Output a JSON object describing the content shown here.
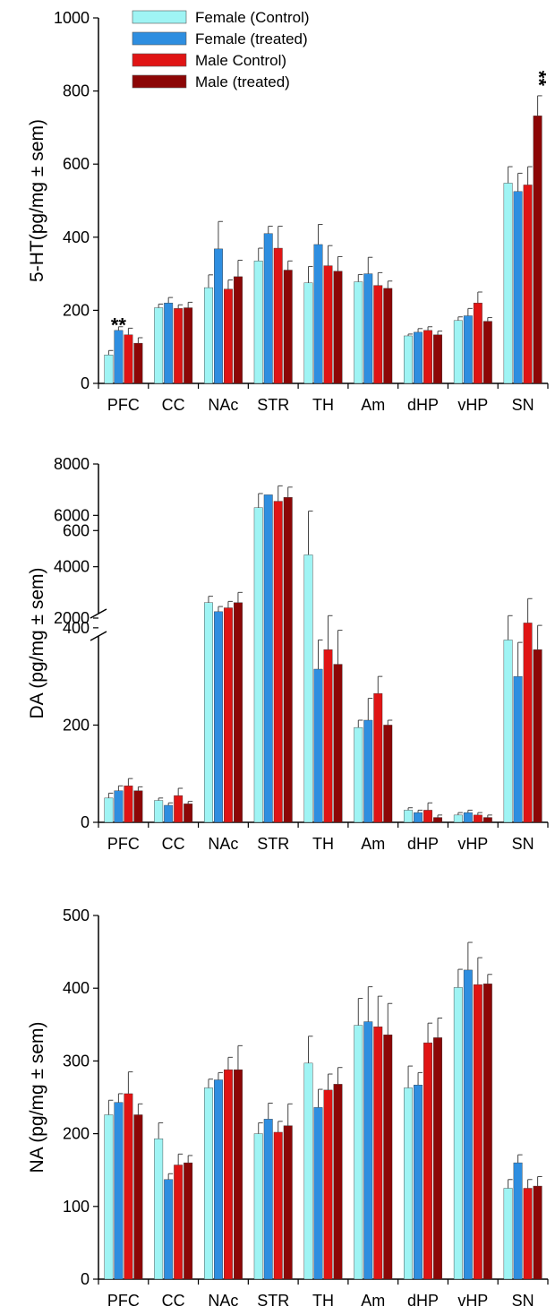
{
  "colors": {
    "female_control": "#9ff4f4",
    "female_treated": "#2e8ee0",
    "male_control": "#e01414",
    "male_treated": "#8c0606"
  },
  "chart_data": [
    {
      "type": "bar",
      "ylabel": "5-HT(pg/mg ± sem)",
      "ylim": [
        0,
        1000
      ],
      "yticks": [
        0,
        200,
        400,
        600,
        800,
        1000
      ],
      "categories": [
        "PFC",
        "CC",
        "NAc",
        "STR",
        "TH",
        "Am",
        "dHP",
        "vHP",
        "SN"
      ],
      "legend_position": "top-left",
      "series": [
        {
          "name": "Female (Control)",
          "color_key": "female_control",
          "values": [
            78,
            207,
            262,
            335,
            275,
            278,
            130,
            172,
            548
          ],
          "errors": [
            12,
            10,
            35,
            35,
            45,
            20,
            5,
            10,
            45
          ]
        },
        {
          "name": "Female (treated)",
          "color_key": "female_treated",
          "values": [
            145,
            220,
            368,
            410,
            380,
            300,
            140,
            185,
            525
          ],
          "errors": [
            10,
            15,
            75,
            20,
            55,
            45,
            10,
            20,
            50
          ]
        },
        {
          "name": "Male Control)",
          "color_key": "male_control",
          "values": [
            133,
            205,
            258,
            370,
            322,
            268,
            145,
            220,
            543
          ],
          "errors": [
            18,
            10,
            25,
            60,
            55,
            35,
            10,
            30,
            50
          ]
        },
        {
          "name": "Male (treated)",
          "color_key": "male_treated",
          "values": [
            110,
            207,
            292,
            310,
            307,
            260,
            133,
            170,
            732
          ],
          "errors": [
            15,
            15,
            45,
            25,
            40,
            20,
            10,
            10,
            55
          ]
        }
      ],
      "annotations": [
        {
          "text": "**",
          "category": "PFC",
          "series": 1,
          "value": 175
        },
        {
          "text": "**",
          "category": "SN",
          "series": 3,
          "value": 835
        }
      ]
    },
    {
      "type": "bar",
      "ylabel": "DA (pg/mg ± sem)",
      "axis_break": true,
      "ylim_lower": [
        0,
        700
      ],
      "yticks_lower": [
        0,
        200,
        400,
        600
      ],
      "ylim_upper": [
        2000,
        8000
      ],
      "yticks_upper": [
        2000,
        4000,
        6000,
        8000
      ],
      "categories": [
        "PFC",
        "CC",
        "NAc",
        "STR",
        "TH",
        "Am",
        "dHP",
        "vHP",
        "SN"
      ],
      "series": [
        {
          "name": "Female (Control)",
          "color_key": "female_control",
          "values": [
            50,
            45,
            2600,
            6300,
            550,
            195,
            25,
            15,
            375
          ],
          "errors": [
            10,
            5,
            250,
            550,
            90,
            15,
            5,
            5,
            50
          ]
        },
        {
          "name": "Female (treated)",
          "color_key": "female_treated",
          "values": [
            65,
            35,
            2250,
            6800,
            315,
            210,
            20,
            20,
            300
          ],
          "errors": [
            10,
            5,
            200,
            0,
            60,
            45,
            5,
            5,
            70
          ]
        },
        {
          "name": "Male Control)",
          "color_key": "male_control",
          "values": [
            75,
            55,
            2400,
            6550,
            355,
            265,
            25,
            15,
            410
          ],
          "errors": [
            15,
            15,
            250,
            600,
            70,
            35,
            15,
            5,
            50
          ]
        },
        {
          "name": "Male (treated)",
          "color_key": "male_treated",
          "values": [
            65,
            38,
            2600,
            6700,
            325,
            200,
            10,
            10,
            355
          ],
          "errors": [
            8,
            5,
            400,
            400,
            70,
            10,
            5,
            5,
            50
          ]
        }
      ]
    },
    {
      "type": "bar",
      "ylabel": "NA (pg/mg ± sem)",
      "ylim": [
        0,
        500
      ],
      "yticks": [
        0,
        100,
        200,
        300,
        400,
        500
      ],
      "categories": [
        "PFC",
        "CC",
        "NAc",
        "STR",
        "TH",
        "Am",
        "dHP",
        "vHP",
        "SN"
      ],
      "series": [
        {
          "name": "Female (Control)",
          "color_key": "female_control",
          "values": [
            226,
            193,
            263,
            200,
            297,
            349,
            263,
            401,
            125
          ],
          "errors": [
            20,
            22,
            12,
            15,
            37,
            37,
            30,
            25,
            12
          ]
        },
        {
          "name": "Female (treated)",
          "color_key": "female_treated",
          "values": [
            243,
            137,
            274,
            220,
            236,
            354,
            267,
            425,
            160
          ],
          "errors": [
            12,
            8,
            10,
            22,
            25,
            48,
            17,
            38,
            11
          ]
        },
        {
          "name": "Male Control)",
          "color_key": "male_control",
          "values": [
            255,
            157,
            288,
            202,
            260,
            347,
            325,
            405,
            125
          ],
          "errors": [
            30,
            15,
            17,
            15,
            22,
            42,
            27,
            37,
            12
          ]
        },
        {
          "name": "Male (treated)",
          "color_key": "male_treated",
          "values": [
            226,
            160,
            288,
            211,
            268,
            336,
            332,
            406,
            128
          ],
          "errors": [
            15,
            10,
            33,
            30,
            23,
            43,
            27,
            13,
            13
          ]
        }
      ]
    }
  ]
}
